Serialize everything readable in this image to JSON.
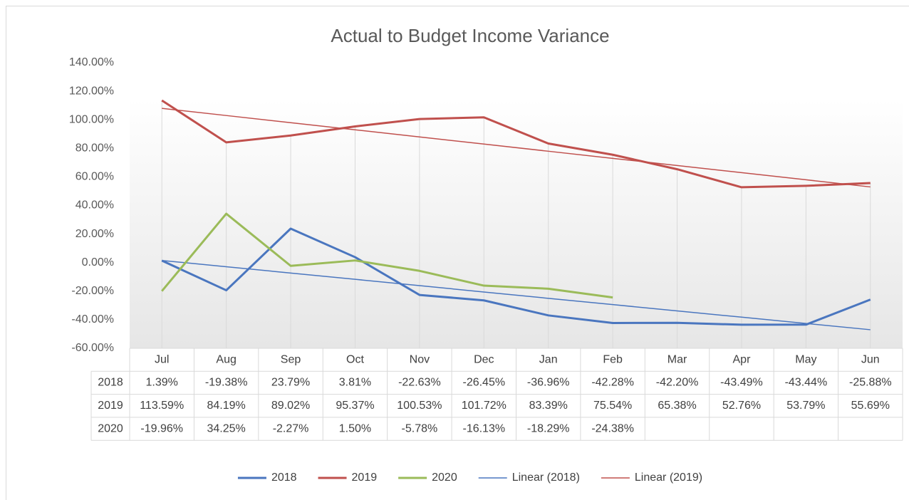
{
  "chart_data": {
    "type": "line",
    "title": "Actual to Budget Income Variance",
    "categories": [
      "Jul",
      "Aug",
      "Sep",
      "Oct",
      "Nov",
      "Dec",
      "Jan",
      "Feb",
      "Mar",
      "Apr",
      "May",
      "Jun"
    ],
    "series": [
      {
        "name": "2018",
        "color": "#4a76bf",
        "values": [
          1.39,
          -19.38,
          23.79,
          3.81,
          -22.63,
          -26.45,
          -36.96,
          -42.28,
          -42.2,
          -43.49,
          -43.44,
          -25.88
        ],
        "value_labels": [
          "1.39%",
          "-19.38%",
          "23.79%",
          "3.81%",
          "-22.63%",
          "-26.45%",
          "-36.96%",
          "-42.28%",
          "-42.20%",
          "-43.49%",
          "-43.44%",
          "-25.88%"
        ]
      },
      {
        "name": "2019",
        "color": "#c0504d",
        "values": [
          113.59,
          84.19,
          89.02,
          95.37,
          100.53,
          101.72,
          83.39,
          75.54,
          65.38,
          52.76,
          53.79,
          55.69
        ],
        "value_labels": [
          "113.59%",
          "84.19%",
          "89.02%",
          "95.37%",
          "100.53%",
          "101.72%",
          "83.39%",
          "75.54%",
          "65.38%",
          "52.76%",
          "53.79%",
          "55.69%"
        ]
      },
      {
        "name": "2020",
        "color": "#9bbb59",
        "values": [
          -19.96,
          34.25,
          -2.27,
          1.5,
          -5.78,
          -16.13,
          -18.29,
          -24.38,
          null,
          null,
          null,
          null
        ],
        "value_labels": [
          "-19.96%",
          "34.25%",
          "-2.27%",
          "1.50%",
          "-5.78%",
          "-16.13%",
          "-18.29%",
          "-24.38%",
          null,
          null,
          null,
          null
        ]
      }
    ],
    "trendlines": [
      {
        "name": "Linear (2018)",
        "color": "#4a76bf",
        "values": [
          1.5,
          -2.9,
          -7.3,
          -11.7,
          -16.1,
          -20.6,
          -25.0,
          -29.4,
          -33.8,
          -38.2,
          -42.6,
          -47.0
        ]
      },
      {
        "name": "Linear (2019)",
        "color": "#c0504d",
        "values": [
          108,
          103,
          98,
          93,
          88,
          83,
          78,
          73,
          68,
          63,
          58,
          53
        ]
      }
    ],
    "ylim": [
      -60,
      140
    ],
    "yticks": [
      {
        "value": -60,
        "label": "-60.00%"
      },
      {
        "value": -40,
        "label": "-40.00%"
      },
      {
        "value": -20,
        "label": "-20.00%"
      },
      {
        "value": 0,
        "label": "0.00%"
      },
      {
        "value": 20,
        "label": "20.00%"
      },
      {
        "value": 40,
        "label": "40.00%"
      },
      {
        "value": 60,
        "label": "60.00%"
      },
      {
        "value": 80,
        "label": "80.00%"
      },
      {
        "value": 100,
        "label": "100.00%"
      },
      {
        "value": 120,
        "label": "120.00%"
      },
      {
        "value": 140,
        "label": "140.00%"
      }
    ],
    "grid": false,
    "legend": "bottom"
  }
}
